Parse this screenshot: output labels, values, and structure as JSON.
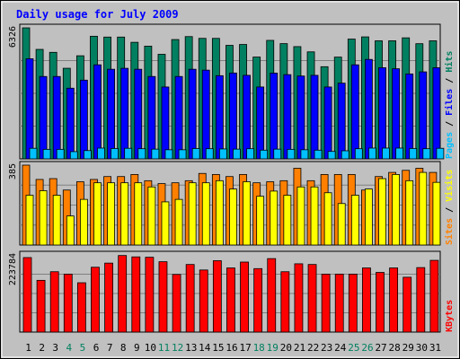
{
  "chart_data": {
    "type": "bar",
    "title": "Daily usage for July 2009",
    "categories": [
      "1",
      "2",
      "3",
      "4",
      "5",
      "6",
      "7",
      "8",
      "9",
      "10",
      "11",
      "12",
      "13",
      "14",
      "15",
      "16",
      "17",
      "18",
      "19",
      "20",
      "21",
      "22",
      "23",
      "24",
      "25",
      "26",
      "27",
      "28",
      "29",
      "30",
      "31"
    ],
    "weekend_categories": [
      "4",
      "5",
      "11",
      "12",
      "18",
      "19",
      "25",
      "26"
    ],
    "panels": [
      {
        "name": "traffic",
        "ymax_label": "6326",
        "ymax": 6326,
        "legend": [
          {
            "text": "Pages",
            "color": "#00c0ff"
          },
          {
            "text": " / ",
            "color": "#000000"
          },
          {
            "text": "Files",
            "color": "#0000ff"
          },
          {
            "text": " / ",
            "color": "#000000"
          },
          {
            "text": "Hits",
            "color": "#008060"
          }
        ],
        "series": [
          {
            "name": "Hits",
            "color": "#008060",
            "values": [
              6326,
              5285,
              5143,
              4374,
              4977,
              5920,
              5880,
              5880,
              5627,
              5442,
              5048,
              5760,
              5903,
              5817,
              5817,
              5480,
              5523,
              4915,
              5720,
              5563,
              5419,
              5166,
              4449,
              4912,
              5783,
              5889,
              5700,
              5701,
              5843,
              5560,
              5700
            ]
          },
          {
            "name": "Files",
            "color": "#0000ff",
            "values": [
              4833,
              3977,
              3977,
              3412,
              3800,
              4540,
              4326,
              4372,
              4326,
              3977,
              3470,
              3977,
              4326,
              4283,
              4016,
              4145,
              4033,
              3470,
              4140,
              4066,
              4000,
              4033,
              3470,
              3656,
              4540,
              4800,
              4400,
              4350,
              4100,
              4200,
              4400
            ]
          },
          {
            "name": "Pages",
            "color": "#00c0ff",
            "values": [
              510,
              460,
              460,
              350,
              400,
              520,
              500,
              510,
              490,
              470,
              440,
              440,
              500,
              490,
              480,
              470,
              490,
              420,
              470,
              460,
              440,
              420,
              360,
              390,
              490,
              520,
              520,
              520,
              500,
              490,
              510
            ]
          }
        ]
      },
      {
        "name": "visitors",
        "ymax_label": "385",
        "ymax": 385,
        "legend": [
          {
            "text": "Sites",
            "color": "#ff8000"
          },
          {
            "text": " / ",
            "color": "#000000"
          },
          {
            "text": "Visits",
            "color": "#ffff00"
          }
        ],
        "series": [
          {
            "name": "Sites",
            "color": "#ff8000",
            "values": [
              385,
              316,
              320,
              265,
              305,
              316,
              330,
              330,
              340,
              310,
              296,
              300,
              310,
              345,
              340,
              330,
              340,
              300,
              305,
              310,
              370,
              310,
              340,
              340,
              340,
              265,
              330,
              350,
              360,
              370,
              350
            ]
          },
          {
            "name": "Visits",
            "color": "#ffff00",
            "values": [
              240,
              262,
              240,
              140,
              220,
              300,
              300,
              300,
              300,
              280,
              208,
              220,
              300,
              300,
              310,
              270,
              305,
              235,
              260,
              240,
              280,
              280,
              252,
              200,
              240,
              270,
              320,
              340,
              310,
              350,
              302
            ]
          }
        ]
      },
      {
        "name": "kbytes",
        "ymax_label": "223784",
        "ymax": 223784,
        "legend": [
          {
            "text": "KBytes",
            "color": "#ff0000"
          }
        ],
        "series": [
          {
            "name": "KBytes",
            "color": "#ff0000",
            "values": [
              216000,
              150000,
              175000,
              168000,
              143000,
              188000,
              200000,
              222000,
              218000,
              217000,
              204000,
              167000,
              196000,
              180000,
              207000,
              186000,
              203000,
              184000,
              213000,
              175000,
              198000,
              196000,
              168000,
              168000,
              168000,
              186000,
              173000,
              186000,
              159000,
              187000,
              208000
            ]
          }
        ]
      }
    ]
  }
}
